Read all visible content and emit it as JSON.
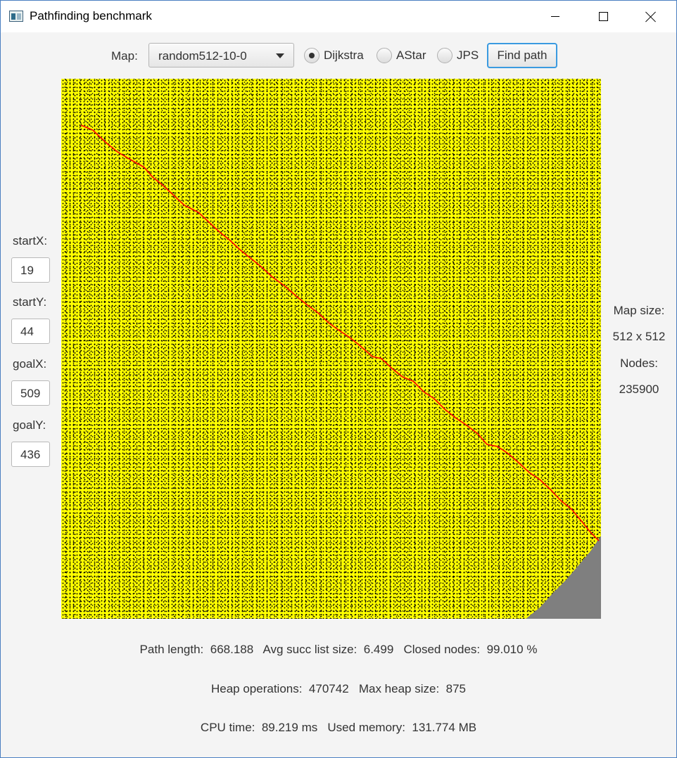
{
  "window": {
    "title": "Pathfinding benchmark",
    "icon": "app-window-icon",
    "controls": [
      "minimize-icon",
      "maximize-icon",
      "close-icon"
    ]
  },
  "toolbar": {
    "map_label": "Map:",
    "map_value": "random512-10-0",
    "algorithms": [
      {
        "label": "Dijkstra",
        "checked": true
      },
      {
        "label": "AStar",
        "checked": false
      },
      {
        "label": "JPS",
        "checked": false
      }
    ],
    "find_button": "Find path"
  },
  "start_goal": {
    "startX_label": "startX:",
    "startX": "19",
    "startY_label": "startY:",
    "startY": "44",
    "goalX_label": "goalX:",
    "goalX": "509",
    "goalY_label": "goalY:",
    "goalY": "436"
  },
  "map_info": {
    "size_label": "Map size:",
    "size_value": "512 x 512",
    "nodes_label": "Nodes:",
    "nodes_value": "235900"
  },
  "map_colors": {
    "open": "#ffff00",
    "obstacle": "#000000",
    "unvisited": "#7f7f7f",
    "path": "#ff0000"
  },
  "stats": {
    "path_length_label": "Path length:",
    "path_length": "668.188",
    "avg_succ_label": "Avg succ list size:",
    "avg_succ": "6.499",
    "closed_label": "Closed nodes:",
    "closed": "99.010 %",
    "heap_ops_label": "Heap operations:",
    "heap_ops": "470742",
    "max_heap_label": "Max heap size:",
    "max_heap": "875",
    "cpu_label": "CPU time:",
    "cpu": "89.219 ms",
    "memory_label": "Used memory:",
    "memory": "131.774 MB"
  }
}
